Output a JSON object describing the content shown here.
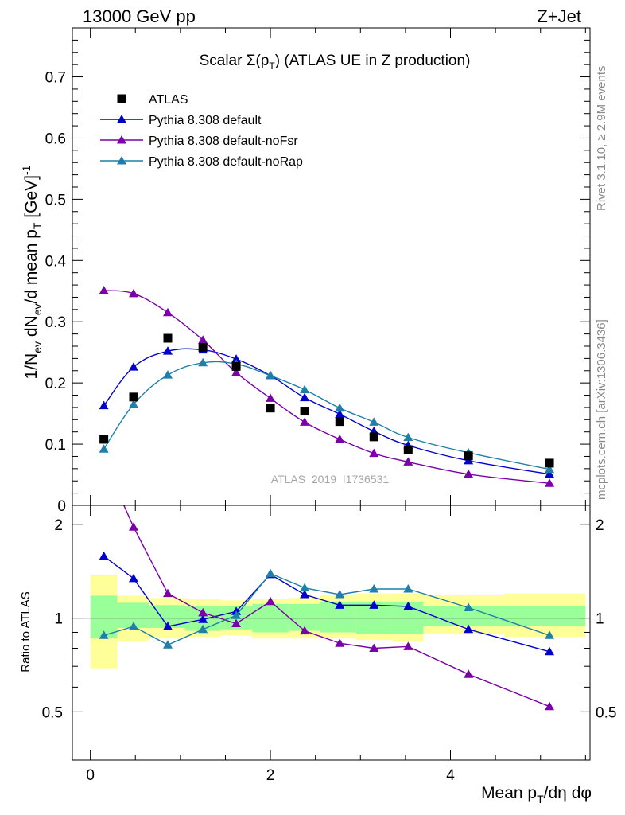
{
  "header": {
    "left": "13000 GeV pp",
    "right": "Z+Jet"
  },
  "side_labels": {
    "rivet": "Rivet 3.1.10, ≥ 2.9M events",
    "mcplots": "mcplots.cern.ch [arXiv:1306.3436]"
  },
  "chart_data": {
    "type": "line",
    "title": "Scalar Σ(p_T) (ATLAS UE in Z production)",
    "analysis_label": "ATLAS_2019_I1736531",
    "xlabel": "Mean p_T/dη dφ",
    "ylabel": "1/N_ev dN_ev/d mean p_T [GeV]^-1",
    "ratio_ylabel": "Ratio to ATLAS",
    "xlim": [
      -0.2,
      5.55
    ],
    "ylim": [
      0,
      0.78
    ],
    "ratio_ylim": [
      0.35,
      2.3
    ],
    "xticks": [
      0,
      2,
      4
    ],
    "yticks": [
      0,
      0.1,
      0.2,
      0.3,
      0.4,
      0.5,
      0.6,
      0.7
    ],
    "ratio_yticks": [
      0.5,
      1,
      2
    ],
    "legend_position": "top-left",
    "colors": {
      "data": "#000000",
      "default": "#0000cc",
      "noFsr": "#7a00aa",
      "noRap": "#1f7fa8",
      "band_inner": "#99ff99",
      "band_outer": "#ffff99"
    },
    "data": {
      "name": "ATLAS",
      "x": [
        0.15,
        0.48,
        0.86,
        1.25,
        1.62,
        2.0,
        2.38,
        2.77,
        3.15,
        3.53,
        4.2,
        5.1
      ],
      "y": [
        0.108,
        0.177,
        0.273,
        0.258,
        0.227,
        0.159,
        0.154,
        0.137,
        0.112,
        0.091,
        0.081,
        0.069
      ]
    },
    "series": [
      {
        "name": "Pythia 8.308 default",
        "x": [
          0.15,
          0.48,
          0.86,
          1.25,
          1.62,
          2.0,
          2.38,
          2.77,
          3.15,
          3.53,
          4.2,
          5.1
        ],
        "y": [
          0.163,
          0.226,
          0.252,
          0.254,
          0.239,
          0.212,
          0.176,
          0.149,
          0.121,
          0.098,
          0.073,
          0.051
        ],
        "ratio": [
          1.58,
          1.34,
          0.94,
          0.99,
          1.05,
          1.38,
          1.19,
          1.1,
          1.1,
          1.09,
          0.92,
          0.78
        ]
      },
      {
        "name": "Pythia 8.308 default-noFsr",
        "x": [
          0.15,
          0.48,
          0.86,
          1.25,
          1.62,
          2.0,
          2.38,
          2.77,
          3.15,
          3.53,
          4.2,
          5.1
        ],
        "y": [
          0.351,
          0.346,
          0.315,
          0.27,
          0.217,
          0.175,
          0.136,
          0.108,
          0.085,
          0.071,
          0.051,
          0.036
        ],
        "ratio": [
          3.2,
          1.96,
          1.2,
          1.04,
          0.96,
          1.13,
          0.91,
          0.83,
          0.8,
          0.81,
          0.66,
          0.52
        ]
      },
      {
        "name": "Pythia 8.308 default-noRap",
        "x": [
          0.15,
          0.48,
          0.86,
          1.25,
          1.62,
          2.0,
          2.38,
          2.77,
          3.15,
          3.53,
          4.2,
          5.1
        ],
        "y": [
          0.092,
          0.165,
          0.213,
          0.233,
          0.231,
          0.212,
          0.189,
          0.159,
          0.136,
          0.111,
          0.086,
          0.059
        ],
        "ratio": [
          0.88,
          0.94,
          0.82,
          0.92,
          1.02,
          1.39,
          1.25,
          1.19,
          1.24,
          1.24,
          1.08,
          0.88
        ]
      }
    ],
    "uncertainty_bins": {
      "edges": [
        0.0,
        0.3,
        0.65,
        1.05,
        1.45,
        1.8,
        2.2,
        2.55,
        2.95,
        3.35,
        3.7,
        4.6,
        5.5
      ],
      "inner": [
        [
          0.86,
          1.18
        ],
        [
          0.93,
          1.12
        ],
        [
          0.93,
          1.1
        ],
        [
          0.91,
          1.09
        ],
        [
          0.92,
          1.09
        ],
        [
          0.9,
          1.11
        ],
        [
          0.91,
          1.11
        ],
        [
          0.9,
          1.13
        ],
        [
          0.89,
          1.13
        ],
        [
          0.89,
          1.13
        ],
        [
          0.94,
          1.09
        ],
        [
          0.94,
          1.09
        ]
      ],
      "outer": [
        [
          0.69,
          1.38
        ],
        [
          0.84,
          1.18
        ],
        [
          0.86,
          1.16
        ],
        [
          0.87,
          1.15
        ],
        [
          0.88,
          1.14
        ],
        [
          0.86,
          1.15
        ],
        [
          0.86,
          1.16
        ],
        [
          0.86,
          1.19
        ],
        [
          0.85,
          1.2
        ],
        [
          0.84,
          1.2
        ],
        [
          0.89,
          1.19
        ],
        [
          0.87,
          1.2
        ]
      ]
    }
  }
}
